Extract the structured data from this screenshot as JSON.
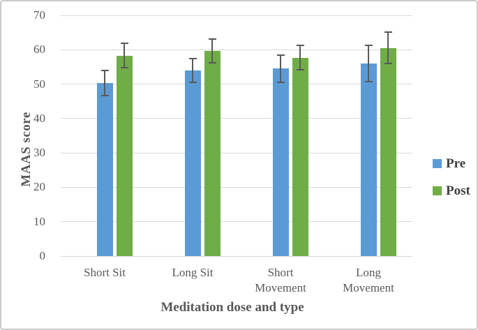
{
  "chart_data": {
    "type": "bar",
    "title": "",
    "categories": [
      "Short Sit",
      "Long Sit",
      "Short Movement",
      "Long Movement"
    ],
    "series": [
      {
        "name": "Pre",
        "color": "#5B9BD5",
        "values": [
          50.3,
          54.0,
          54.5,
          56.0
        ],
        "error_bars": [
          3.7,
          3.5,
          4.0,
          5.2
        ]
      },
      {
        "name": "Post",
        "color": "#70AD47",
        "values": [
          58.3,
          59.7,
          57.7,
          60.5
        ],
        "error_bars": [
          3.6,
          3.5,
          3.6,
          4.6
        ]
      }
    ],
    "xlabel": "Meditation dose and type",
    "ylabel": "MAAS score",
    "ylim": [
      0,
      70
    ],
    "ytick_step": 10,
    "yticks": [
      0,
      10,
      20,
      30,
      40,
      50,
      60,
      70
    ],
    "grid": true,
    "legend_position": "right",
    "legend_entries": [
      "Pre",
      "Post"
    ],
    "colors": {
      "pre": "#5B9BD5",
      "post": "#70AD47",
      "gridline": "#D9D9D9",
      "axis_text": "#595959",
      "error_bar": "#595959",
      "legend_text": "#404040",
      "frame_border": "#CBCBCB",
      "background": "#FFFFFF"
    }
  }
}
